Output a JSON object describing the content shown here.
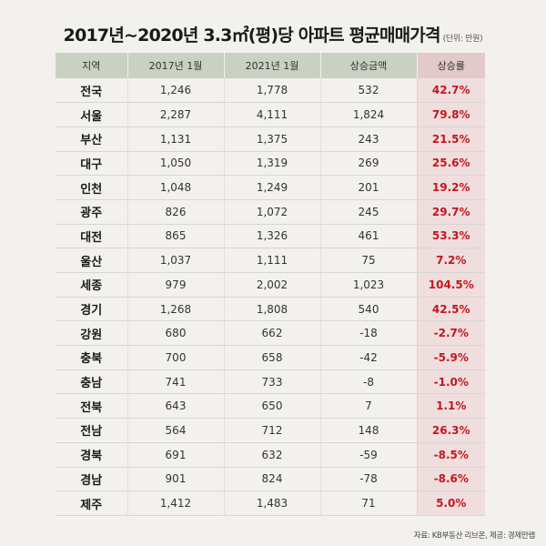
{
  "title": "2017년~2020년 3.3㎡(평)당 아파트 평균매매가격",
  "unit": "(단위: 만원)",
  "columns": [
    "지역",
    "2017년 1월",
    "2021년 1월",
    "상승금액",
    "상승률"
  ],
  "rows": [
    {
      "region": "전국",
      "y2017": "1,246",
      "y2021": "1,778",
      "increase": "532",
      "rate": "42.7%"
    },
    {
      "region": "서울",
      "y2017": "2,287",
      "y2021": "4,111",
      "increase": "1,824",
      "rate": "79.8%"
    },
    {
      "region": "부산",
      "y2017": "1,131",
      "y2021": "1,375",
      "increase": "243",
      "rate": "21.5%"
    },
    {
      "region": "대구",
      "y2017": "1,050",
      "y2021": "1,319",
      "increase": "269",
      "rate": "25.6%"
    },
    {
      "region": "인천",
      "y2017": "1,048",
      "y2021": "1,249",
      "increase": "201",
      "rate": "19.2%"
    },
    {
      "region": "광주",
      "y2017": "826",
      "y2021": "1,072",
      "increase": "245",
      "rate": "29.7%"
    },
    {
      "region": "대전",
      "y2017": "865",
      "y2021": "1,326",
      "increase": "461",
      "rate": "53.3%"
    },
    {
      "region": "울산",
      "y2017": "1,037",
      "y2021": "1,111",
      "increase": "75",
      "rate": "7.2%"
    },
    {
      "region": "세종",
      "y2017": "979",
      "y2021": "2,002",
      "increase": "1,023",
      "rate": "104.5%"
    },
    {
      "region": "경기",
      "y2017": "1,268",
      "y2021": "1,808",
      "increase": "540",
      "rate": "42.5%"
    },
    {
      "region": "강원",
      "y2017": "680",
      "y2021": "662",
      "increase": "-18",
      "rate": "-2.7%"
    },
    {
      "region": "충북",
      "y2017": "700",
      "y2021": "658",
      "increase": "-42",
      "rate": "-5.9%"
    },
    {
      "region": "충남",
      "y2017": "741",
      "y2021": "733",
      "increase": "-8",
      "rate": "-1.0%"
    },
    {
      "region": "전북",
      "y2017": "643",
      "y2021": "650",
      "increase": "7",
      "rate": "1.1%"
    },
    {
      "region": "전남",
      "y2017": "564",
      "y2021": "712",
      "increase": "148",
      "rate": "26.3%"
    },
    {
      "region": "경북",
      "y2017": "691",
      "y2021": "632",
      "increase": "-59",
      "rate": "-8.5%"
    },
    {
      "region": "경남",
      "y2017": "901",
      "y2021": "824",
      "increase": "-78",
      "rate": "-8.6%"
    },
    {
      "region": "제주",
      "y2017": "1,412",
      "y2021": "1,483",
      "increase": "71",
      "rate": "5.0%"
    }
  ],
  "source": "자료: KB부동산 리브온, 제공: 경제만랩",
  "colors": {
    "background": "#f3f1ed",
    "header": "#c8d1c2",
    "rate_header": "#e3c9c9",
    "rate_cell": "#f0dede",
    "rate_text": "#c4161c"
  }
}
